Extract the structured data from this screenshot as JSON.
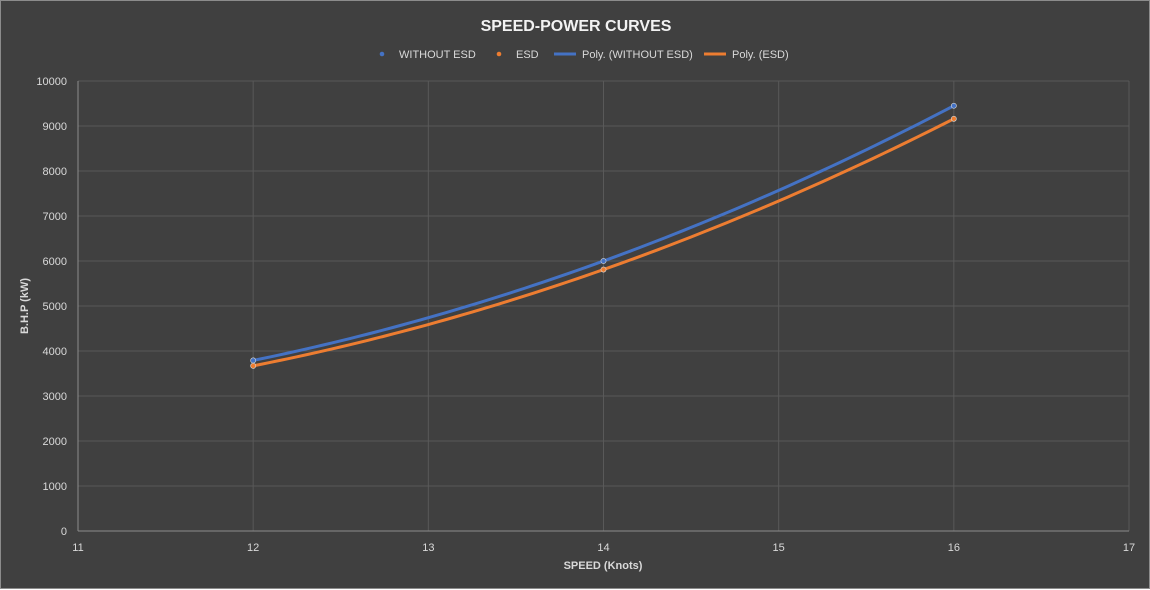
{
  "chart_data": {
    "type": "scatter",
    "title": "SPEED-POWER CURVES",
    "xlabel": "SPEED (Knots)",
    "ylabel": "B.H.P (kW)",
    "xlim": [
      11,
      17
    ],
    "ylim": [
      0,
      10000
    ],
    "xticks": [
      11,
      12,
      13,
      14,
      15,
      16,
      17
    ],
    "yticks": [
      0,
      1000,
      2000,
      3000,
      4000,
      5000,
      6000,
      7000,
      8000,
      9000,
      10000
    ],
    "grid": true,
    "legend_position": "top",
    "series": [
      {
        "name": "WITHOUT ESD",
        "kind": "points",
        "color": "#4472c4",
        "x": [
          12,
          14,
          16
        ],
        "y": [
          3790,
          6000,
          9450
        ]
      },
      {
        "name": "ESD",
        "kind": "points",
        "color": "#ed7d31",
        "x": [
          12,
          14,
          16
        ],
        "y": [
          3670,
          5810,
          9160
        ]
      },
      {
        "name": "Poly. (WITHOUT ESD)",
        "kind": "trendline",
        "color": "#4472c4",
        "x": [
          12,
          14,
          16
        ],
        "y": [
          3790,
          6000,
          9450
        ]
      },
      {
        "name": "Poly. (ESD)",
        "kind": "trendline",
        "color": "#ed7d31",
        "x": [
          12,
          14,
          16
        ],
        "y": [
          3670,
          5810,
          9160
        ]
      }
    ]
  }
}
